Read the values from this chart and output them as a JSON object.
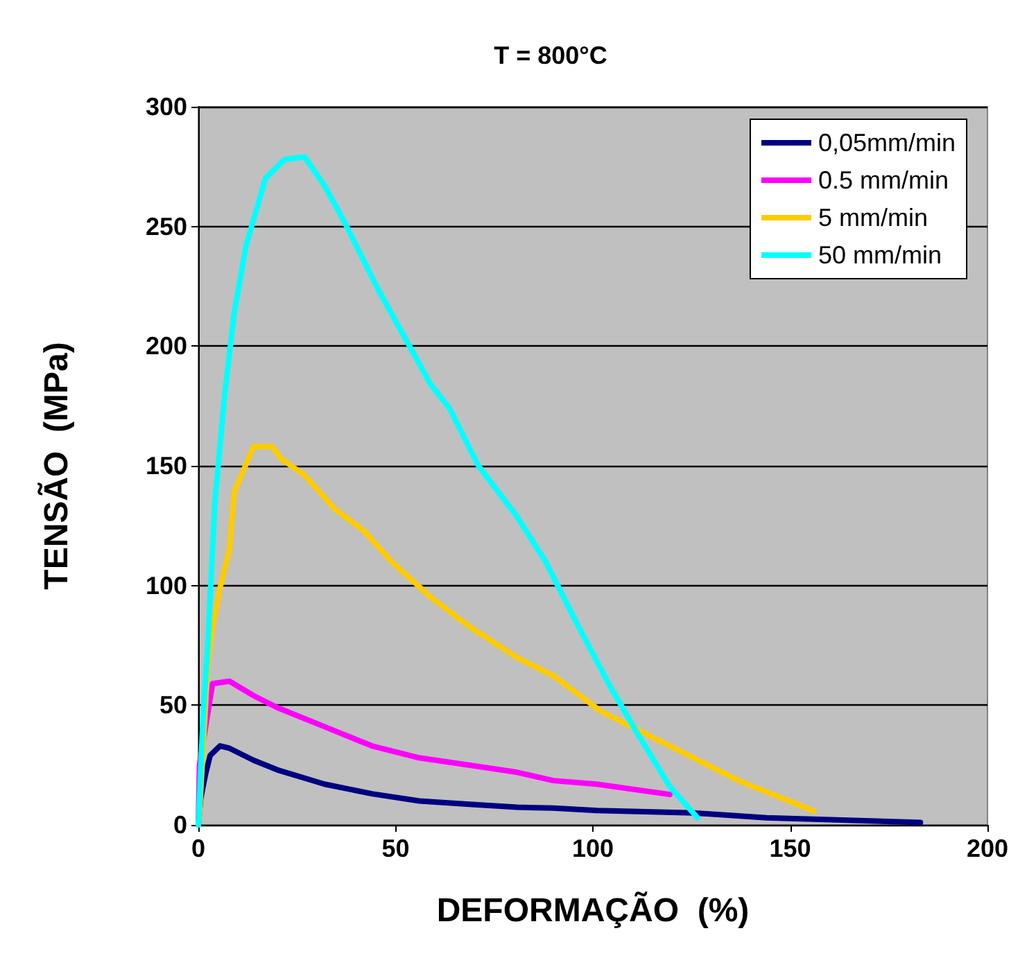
{
  "chart_data": {
    "type": "line",
    "title": "T = 800°C",
    "xlabel": "DEFORMAÇÃO  (%)",
    "ylabel": "TENSÃO  (MPa)",
    "xlim": [
      0,
      200
    ],
    "xticks": [
      0,
      50,
      100,
      150,
      200
    ],
    "ylim": [
      0,
      300
    ],
    "yticks": [
      0,
      50,
      100,
      150,
      200,
      250,
      300
    ],
    "grid": "y",
    "legend": "top right",
    "marker": "none",
    "line_style": "solid",
    "series": [
      {
        "name": "0,05mm/min",
        "color": "#000080",
        "x": [
          0,
          0.6,
          1.8,
          3,
          5.5,
          7.9,
          14,
          20,
          32,
          44,
          56,
          68.6,
          80.7,
          90,
          101,
          125.5,
          144,
          183
        ],
        "values": [
          0,
          11,
          21,
          29,
          33,
          32,
          27,
          23,
          17,
          13,
          10,
          8.6,
          7.4,
          7,
          6,
          5,
          3,
          1
        ]
      },
      {
        "name": "0.5 mm/min",
        "color": "#ff00ff",
        "x": [
          0,
          0.3,
          3.6,
          7.9,
          14,
          20,
          32,
          44,
          56,
          68.6,
          80.7,
          90,
          101,
          119.5
        ],
        "values": [
          0,
          25,
          59,
          60,
          54,
          49,
          41,
          33,
          28,
          25,
          22,
          18.5,
          17,
          12.7
        ]
      },
      {
        "name": "5 mm/min",
        "color": "#ffcc00",
        "x": [
          0,
          0.3,
          2.4,
          3.6,
          5.5,
          7.9,
          9.1,
          10.9,
          14,
          18.8,
          21,
          27,
          34.6,
          41.9,
          49,
          59,
          68.6,
          80.7,
          90.3,
          102,
          119.5,
          137,
          156
        ],
        "values": [
          0,
          5,
          67,
          82,
          99,
          115,
          139,
          146,
          158,
          158,
          153,
          146,
          132,
          123,
          110,
          95,
          83,
          70,
          62,
          47.5,
          33,
          18.5,
          5.8
        ]
      },
      {
        "name": "50 mm/min",
        "color": "#00ffff",
        "x": [
          0,
          1.2,
          2.4,
          4.2,
          6.7,
          9.1,
          12.1,
          17,
          21.8,
          27,
          32,
          37,
          45.5,
          58.9,
          63.7,
          71,
          80.7,
          88,
          96,
          104,
          111,
          119.5,
          126.5
        ],
        "values": [
          0,
          45,
          75,
          135,
          180,
          214,
          242,
          270,
          278,
          279,
          267,
          252,
          224,
          184,
          174,
          150,
          129,
          110,
          84,
          59,
          39,
          16,
          3
        ]
      }
    ]
  }
}
